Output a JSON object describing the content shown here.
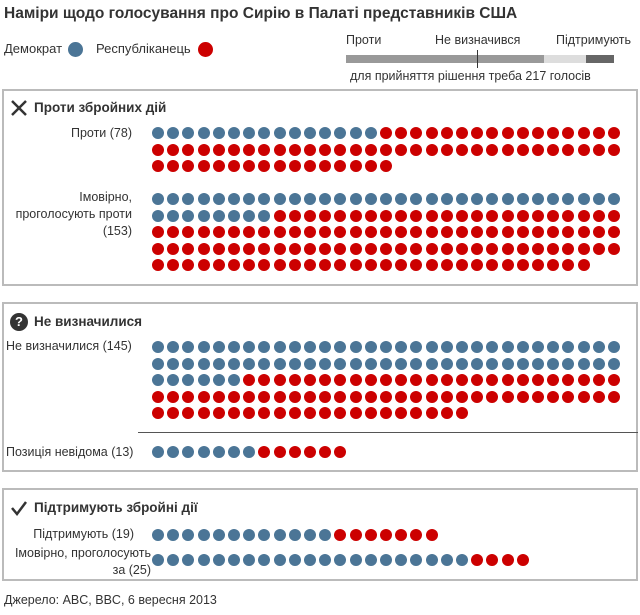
{
  "title": "Наміри щодо голосування про Сирію в Палаті представників США",
  "legend": {
    "democrat": "Демократ",
    "republican": "Республіканець"
  },
  "colors": {
    "democrat": "#4b7596",
    "republican": "#cc0000",
    "bar_against": "#999999",
    "bar_undecided": "#dddddd",
    "bar_support": "#666666"
  },
  "scale_bar": {
    "against_label": "Проти",
    "undecided_label": "Не визначився",
    "support_label": "Підтримують",
    "note": "для прийняття рішення треба 217 голосів"
  },
  "sections": {
    "against": {
      "title": "Проти збройних дій",
      "icon": "x-icon"
    },
    "undecided": {
      "title": "Не визначилися",
      "icon": "question-icon"
    },
    "support": {
      "title": "Підтримують збройні дії",
      "icon": "checkmark-icon"
    }
  },
  "source": "Джерело: ABC, BBC, 6 вересня 2013",
  "chart_data": {
    "type": "dot-matrix",
    "title": "Наміри щодо голосування про Сирію в Палаті представників США",
    "series_names": [
      "Демократ",
      "Республіканець"
    ],
    "groups": [
      {
        "section": "Проти збройних дій",
        "label": "Проти (78)",
        "total": 78,
        "democrats": 15,
        "republicans": 63
      },
      {
        "section": "Проти збройних дій",
        "label": "Імовірно, проголосують проти (153)",
        "total": 153,
        "democrats": 39,
        "republicans": 114
      },
      {
        "section": "Не визначилися",
        "label": "Не визначилися (145)",
        "total": 145,
        "democrats": 68,
        "republicans": 77
      },
      {
        "section": "Не визначилися",
        "label": "Позиція невідома (13)",
        "total": 13,
        "democrats": 7,
        "republicans": 6
      },
      {
        "section": "Підтримують збройні дії",
        "label": "Підтримують (19)",
        "total": 19,
        "democrats": 12,
        "republicans": 7
      },
      {
        "section": "Підтримують збройні дії",
        "label": "Імовірно, проголосують за (25)",
        "total": 25,
        "democrats": 21,
        "republicans": 4
      }
    ],
    "majority_needed": 217
  }
}
